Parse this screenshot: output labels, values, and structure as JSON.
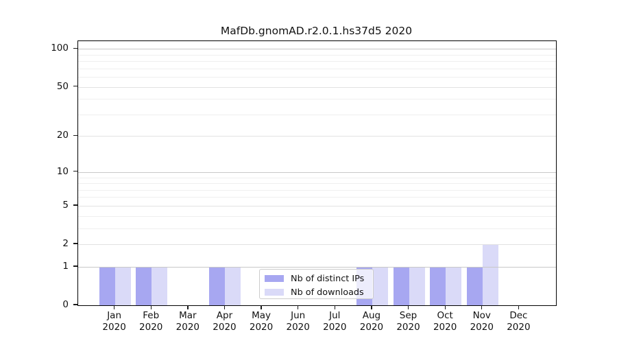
{
  "title": "MafDb.gnomAD.r2.0.1.hs37d5 2020",
  "chart_data": {
    "type": "bar",
    "title": "MafDb.gnomAD.r2.0.1.hs37d5 2020",
    "categories": [
      "Jan",
      "Feb",
      "Mar",
      "Apr",
      "May",
      "Jun",
      "Jul",
      "Aug",
      "Sep",
      "Oct",
      "Nov",
      "Dec"
    ],
    "x_sublabel": "2020",
    "series": [
      {
        "name": "Nb of distinct IPs",
        "color": "#a7a7f1",
        "values": [
          1,
          1,
          0,
          1,
          0,
          0,
          0,
          1,
          1,
          1,
          1,
          0
        ]
      },
      {
        "name": "Nb of downloads",
        "color": "#dadaf8",
        "values": [
          1,
          1,
          0,
          1,
          0,
          0,
          0,
          1,
          1,
          1,
          2,
          0
        ]
      }
    ],
    "yscale": "log1p",
    "ylim": [
      0,
      115
    ],
    "yticks": [
      100,
      50,
      20,
      10,
      5,
      2,
      1,
      0
    ],
    "minor_gridline_values": [
      3,
      4,
      6,
      7,
      8,
      9,
      30,
      40,
      60,
      70,
      80,
      90
    ],
    "grid": true,
    "legend_position": "lower center",
    "colors": {
      "major_gridline": "#c8c8c8",
      "mid_gridline": "#e2e2e2",
      "minor_gridline": "#efefef",
      "spine": "#000000"
    }
  }
}
